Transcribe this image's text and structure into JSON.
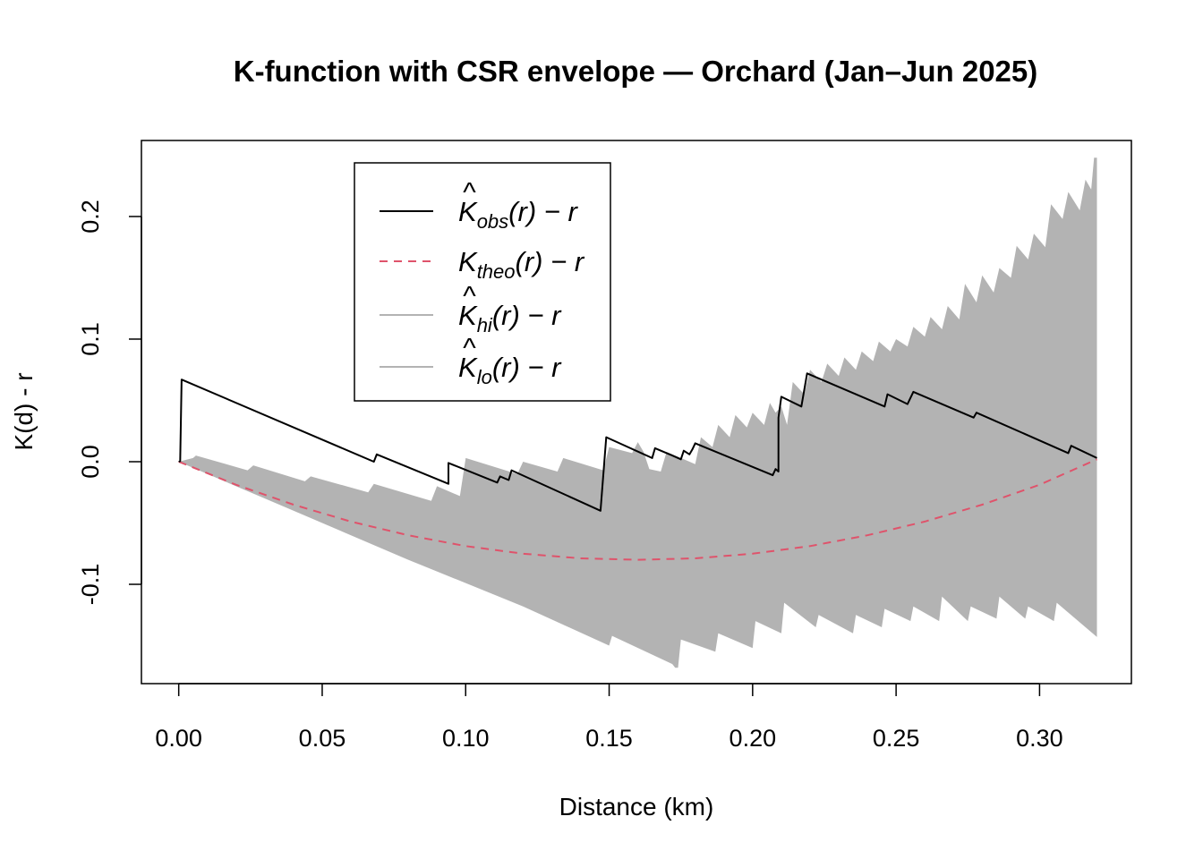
{
  "chart_data": {
    "type": "line",
    "title": "K-function with CSR envelope — Orchard (Jan–Jun 2025)",
    "xlabel": "Distance (km)",
    "ylabel": "K(d) - r",
    "xlim": [
      -0.013,
      0.332
    ],
    "ylim": [
      -0.181,
      0.262
    ],
    "x_ticks": [
      0.0,
      0.05,
      0.1,
      0.15,
      0.2,
      0.25,
      0.3
    ],
    "x_tick_labels": [
      "0.00",
      "0.05",
      "0.10",
      "0.15",
      "0.20",
      "0.25",
      "0.30"
    ],
    "y_ticks": [
      -0.1,
      0.0,
      0.1,
      0.2
    ],
    "y_tick_labels": [
      "-0.1",
      "0.0",
      "0.1",
      "0.2"
    ],
    "grid": false,
    "legend_position": "top-left",
    "colors": {
      "obs": "#000000",
      "theo": "#DF536B",
      "envelope": "#B3B3B3"
    },
    "legend": [
      {
        "key": "obs",
        "base": "K",
        "hat": true,
        "sub": "obs",
        "suffix": "(r) − r"
      },
      {
        "key": "theo",
        "base": "K",
        "hat": false,
        "sub": "theo",
        "suffix": "(r) − r"
      },
      {
        "key": "hi",
        "base": "K",
        "hat": true,
        "sub": "hi",
        "suffix": "(r) − r"
      },
      {
        "key": "lo",
        "base": "K",
        "hat": true,
        "sub": "lo",
        "suffix": "(r) − r"
      }
    ],
    "series": [
      {
        "key": "obs",
        "style": "solid",
        "x": [
          0,
          0.0005,
          0.001,
          0.068,
          0.069,
          0.094,
          0.094,
          0.111,
          0.112,
          0.115,
          0.116,
          0.147,
          0.147,
          0.149,
          0.165,
          0.166,
          0.172,
          0.175,
          0.176,
          0.178,
          0.179,
          0.18,
          0.207,
          0.208,
          0.209,
          0.209,
          0.21,
          0.217,
          0.219,
          0.246,
          0.247,
          0.254,
          0.256,
          0.277,
          0.278,
          0.31,
          0.311,
          0.32
        ],
        "y": [
          0,
          0.0005,
          0.067,
          0.0,
          0.006,
          -0.018,
          -0.001,
          -0.017,
          -0.012,
          -0.015,
          -0.007,
          -0.04,
          -0.04,
          0.02,
          0.003,
          0.011,
          0.005,
          0.002,
          0.009,
          0.006,
          0.01,
          0.015,
          -0.011,
          -0.006,
          -0.008,
          0.036,
          0.053,
          0.045,
          0.072,
          0.045,
          0.055,
          0.047,
          0.057,
          0.036,
          0.04,
          0.007,
          0.013,
          0.003
        ]
      },
      {
        "key": "theo",
        "style": "dashed",
        "x": [
          0,
          0.02,
          0.04,
          0.06,
          0.08,
          0.1,
          0.12,
          0.14,
          0.16,
          0.18,
          0.2,
          0.22,
          0.24,
          0.26,
          0.28,
          0.3,
          0.32
        ],
        "y": [
          0,
          -0.0188,
          -0.035,
          -0.0488,
          -0.06,
          -0.0688,
          -0.075,
          -0.0788,
          -0.08,
          -0.0788,
          -0.075,
          -0.0688,
          -0.06,
          -0.0488,
          -0.035,
          -0.0188,
          0.002
        ]
      },
      {
        "key": "hi",
        "style": "envelope-upper",
        "x": [
          0,
          0.005,
          0.006,
          0.024,
          0.026,
          0.044,
          0.046,
          0.066,
          0.068,
          0.088,
          0.09,
          0.098,
          0.1,
          0.118,
          0.12,
          0.132,
          0.134,
          0.148,
          0.15,
          0.158,
          0.16,
          0.162,
          0.164,
          0.168,
          0.17,
          0.18,
          0.182,
          0.186,
          0.188,
          0.192,
          0.194,
          0.198,
          0.2,
          0.204,
          0.206,
          0.208,
          0.21,
          0.212,
          0.214,
          0.218,
          0.22,
          0.224,
          0.226,
          0.23,
          0.232,
          0.236,
          0.238,
          0.242,
          0.244,
          0.248,
          0.25,
          0.254,
          0.256,
          0.26,
          0.262,
          0.266,
          0.268,
          0.272,
          0.274,
          0.278,
          0.28,
          0.284,
          0.286,
          0.29,
          0.292,
          0.296,
          0.298,
          0.302,
          0.304,
          0.308,
          0.31,
          0.314,
          0.316,
          0.318,
          0.319,
          0.32
        ],
        "y": [
          0,
          0.003,
          0.005,
          -0.007,
          -0.003,
          -0.016,
          -0.012,
          -0.025,
          -0.018,
          -0.032,
          -0.02,
          -0.028,
          0.003,
          -0.01,
          0.0,
          -0.008,
          0.003,
          -0.007,
          0.012,
          0.007,
          0.016,
          0.008,
          -0.006,
          -0.008,
          0.008,
          -0.002,
          0.02,
          0.012,
          0.03,
          0.02,
          0.038,
          0.028,
          0.04,
          0.03,
          0.048,
          0.04,
          0.045,
          0.03,
          0.065,
          0.055,
          0.075,
          0.065,
          0.08,
          0.07,
          0.085,
          0.075,
          0.09,
          0.082,
          0.098,
          0.09,
          0.1,
          0.094,
          0.11,
          0.102,
          0.118,
          0.108,
          0.127,
          0.116,
          0.145,
          0.13,
          0.152,
          0.138,
          0.158,
          0.15,
          0.176,
          0.165,
          0.186,
          0.175,
          0.21,
          0.198,
          0.22,
          0.205,
          0.23,
          0.222,
          0.248,
          0.248
        ]
      },
      {
        "key": "lo",
        "style": "envelope-lower",
        "x": [
          0,
          0.04,
          0.08,
          0.12,
          0.15,
          0.151,
          0.172,
          0.173,
          0.174,
          0.175,
          0.187,
          0.188,
          0.2,
          0.201,
          0.21,
          0.211,
          0.222,
          0.223,
          0.235,
          0.236,
          0.245,
          0.246,
          0.255,
          0.256,
          0.265,
          0.266,
          0.275,
          0.276,
          0.285,
          0.286,
          0.295,
          0.296,
          0.305,
          0.306,
          0.32
        ],
        "y": [
          0,
          -0.04,
          -0.08,
          -0.118,
          -0.15,
          -0.142,
          -0.165,
          -0.168,
          -0.168,
          -0.145,
          -0.155,
          -0.14,
          -0.152,
          -0.13,
          -0.14,
          -0.115,
          -0.135,
          -0.125,
          -0.14,
          -0.125,
          -0.135,
          -0.12,
          -0.13,
          -0.118,
          -0.13,
          -0.11,
          -0.13,
          -0.118,
          -0.128,
          -0.11,
          -0.128,
          -0.118,
          -0.13,
          -0.115,
          -0.143
        ]
      }
    ]
  }
}
